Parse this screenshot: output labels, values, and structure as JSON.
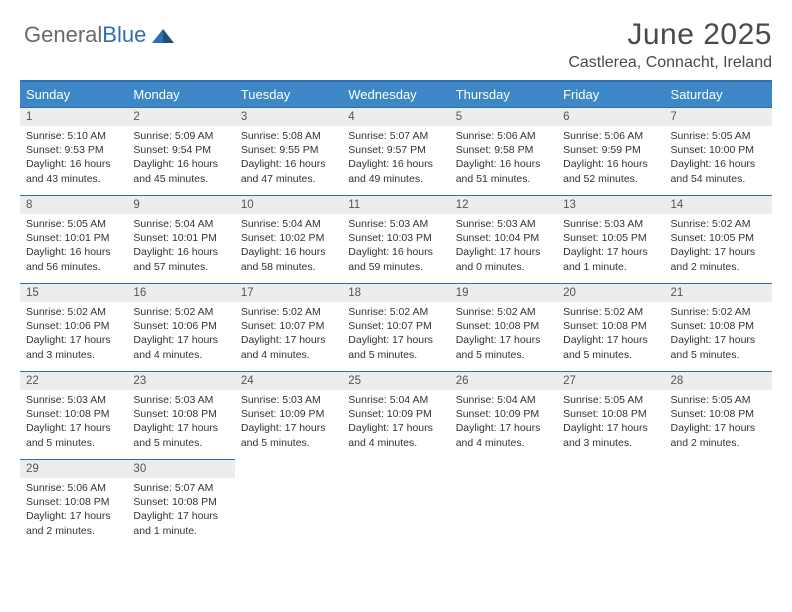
{
  "logo": {
    "textGray": "General",
    "textBlue": "Blue"
  },
  "title": "June 2025",
  "location": "Castlerea, Connacht, Ireland",
  "colors": {
    "headerBg": "#3d87c7",
    "headerBorder": "#2f6fb0",
    "rowBorder": "#2f6fb0",
    "dayNumBg": "#eceded",
    "text": "#333333",
    "logoGray": "#6a6a6a",
    "logoBlue": "#2f6fb0"
  },
  "weekdays": [
    "Sunday",
    "Monday",
    "Tuesday",
    "Wednesday",
    "Thursday",
    "Friday",
    "Saturday"
  ],
  "weeks": [
    [
      {
        "n": "1",
        "sr": "5:10 AM",
        "ss": "9:53 PM",
        "dl": "16 hours and 43 minutes."
      },
      {
        "n": "2",
        "sr": "5:09 AM",
        "ss": "9:54 PM",
        "dl": "16 hours and 45 minutes."
      },
      {
        "n": "3",
        "sr": "5:08 AM",
        "ss": "9:55 PM",
        "dl": "16 hours and 47 minutes."
      },
      {
        "n": "4",
        "sr": "5:07 AM",
        "ss": "9:57 PM",
        "dl": "16 hours and 49 minutes."
      },
      {
        "n": "5",
        "sr": "5:06 AM",
        "ss": "9:58 PM",
        "dl": "16 hours and 51 minutes."
      },
      {
        "n": "6",
        "sr": "5:06 AM",
        "ss": "9:59 PM",
        "dl": "16 hours and 52 minutes."
      },
      {
        "n": "7",
        "sr": "5:05 AM",
        "ss": "10:00 PM",
        "dl": "16 hours and 54 minutes."
      }
    ],
    [
      {
        "n": "8",
        "sr": "5:05 AM",
        "ss": "10:01 PM",
        "dl": "16 hours and 56 minutes."
      },
      {
        "n": "9",
        "sr": "5:04 AM",
        "ss": "10:01 PM",
        "dl": "16 hours and 57 minutes."
      },
      {
        "n": "10",
        "sr": "5:04 AM",
        "ss": "10:02 PM",
        "dl": "16 hours and 58 minutes."
      },
      {
        "n": "11",
        "sr": "5:03 AM",
        "ss": "10:03 PM",
        "dl": "16 hours and 59 minutes."
      },
      {
        "n": "12",
        "sr": "5:03 AM",
        "ss": "10:04 PM",
        "dl": "17 hours and 0 minutes."
      },
      {
        "n": "13",
        "sr": "5:03 AM",
        "ss": "10:05 PM",
        "dl": "17 hours and 1 minute."
      },
      {
        "n": "14",
        "sr": "5:02 AM",
        "ss": "10:05 PM",
        "dl": "17 hours and 2 minutes."
      }
    ],
    [
      {
        "n": "15",
        "sr": "5:02 AM",
        "ss": "10:06 PM",
        "dl": "17 hours and 3 minutes."
      },
      {
        "n": "16",
        "sr": "5:02 AM",
        "ss": "10:06 PM",
        "dl": "17 hours and 4 minutes."
      },
      {
        "n": "17",
        "sr": "5:02 AM",
        "ss": "10:07 PM",
        "dl": "17 hours and 4 minutes."
      },
      {
        "n": "18",
        "sr": "5:02 AM",
        "ss": "10:07 PM",
        "dl": "17 hours and 5 minutes."
      },
      {
        "n": "19",
        "sr": "5:02 AM",
        "ss": "10:08 PM",
        "dl": "17 hours and 5 minutes."
      },
      {
        "n": "20",
        "sr": "5:02 AM",
        "ss": "10:08 PM",
        "dl": "17 hours and 5 minutes."
      },
      {
        "n": "21",
        "sr": "5:02 AM",
        "ss": "10:08 PM",
        "dl": "17 hours and 5 minutes."
      }
    ],
    [
      {
        "n": "22",
        "sr": "5:03 AM",
        "ss": "10:08 PM",
        "dl": "17 hours and 5 minutes."
      },
      {
        "n": "23",
        "sr": "5:03 AM",
        "ss": "10:08 PM",
        "dl": "17 hours and 5 minutes."
      },
      {
        "n": "24",
        "sr": "5:03 AM",
        "ss": "10:09 PM",
        "dl": "17 hours and 5 minutes."
      },
      {
        "n": "25",
        "sr": "5:04 AM",
        "ss": "10:09 PM",
        "dl": "17 hours and 4 minutes."
      },
      {
        "n": "26",
        "sr": "5:04 AM",
        "ss": "10:09 PM",
        "dl": "17 hours and 4 minutes."
      },
      {
        "n": "27",
        "sr": "5:05 AM",
        "ss": "10:08 PM",
        "dl": "17 hours and 3 minutes."
      },
      {
        "n": "28",
        "sr": "5:05 AM",
        "ss": "10:08 PM",
        "dl": "17 hours and 2 minutes."
      }
    ],
    [
      {
        "n": "29",
        "sr": "5:06 AM",
        "ss": "10:08 PM",
        "dl": "17 hours and 2 minutes."
      },
      {
        "n": "30",
        "sr": "5:07 AM",
        "ss": "10:08 PM",
        "dl": "17 hours and 1 minute."
      },
      null,
      null,
      null,
      null,
      null
    ]
  ],
  "labels": {
    "sunrise": "Sunrise: ",
    "sunset": "Sunset: ",
    "daylight": "Daylight: "
  }
}
